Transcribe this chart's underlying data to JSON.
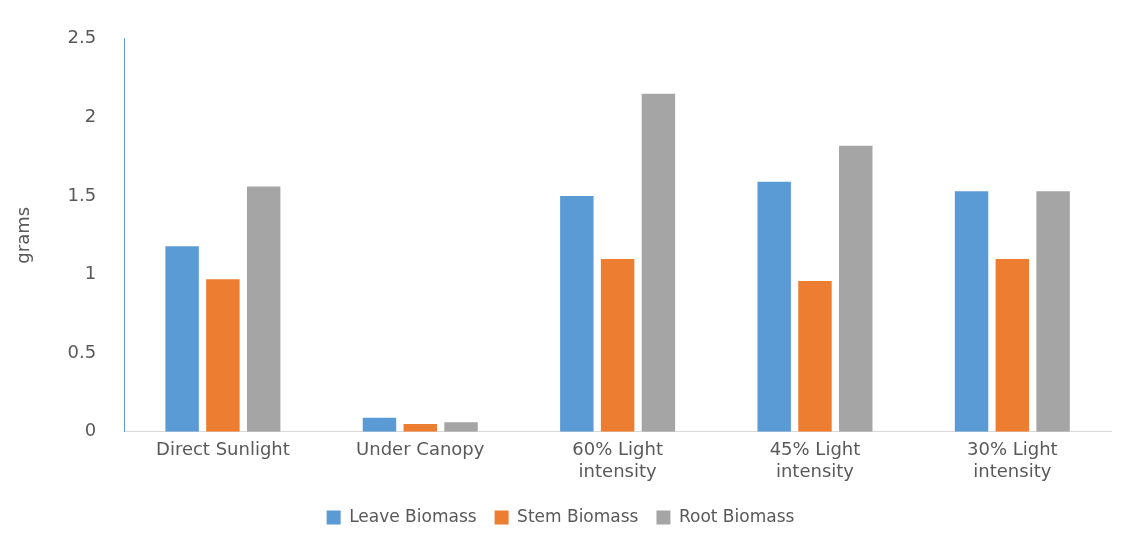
{
  "chart_data": {
    "type": "bar",
    "ylabel": "grams",
    "categories": [
      "Direct Sunlight",
      "Under Canopy",
      "60% Light intensity",
      "45% Light intensity",
      "30% Light intensity"
    ],
    "series": [
      {
        "name": "Leave Biomass",
        "color": "#5b9bd5",
        "values": [
          1.18,
          0.09,
          1.5,
          1.59,
          1.53
        ]
      },
      {
        "name": "Stem Biomass",
        "color": "#ed7d31",
        "values": [
          0.97,
          0.05,
          1.1,
          0.96,
          1.1
        ]
      },
      {
        "name": "Root Biomass",
        "color": "#a5a5a5",
        "values": [
          1.56,
          0.06,
          2.15,
          1.82,
          1.53
        ]
      }
    ],
    "ylim": [
      0,
      2.5
    ],
    "yticks": [
      0,
      0.5,
      1,
      1.5,
      2,
      2.5
    ],
    "grid": false,
    "legend": "bottom"
  }
}
